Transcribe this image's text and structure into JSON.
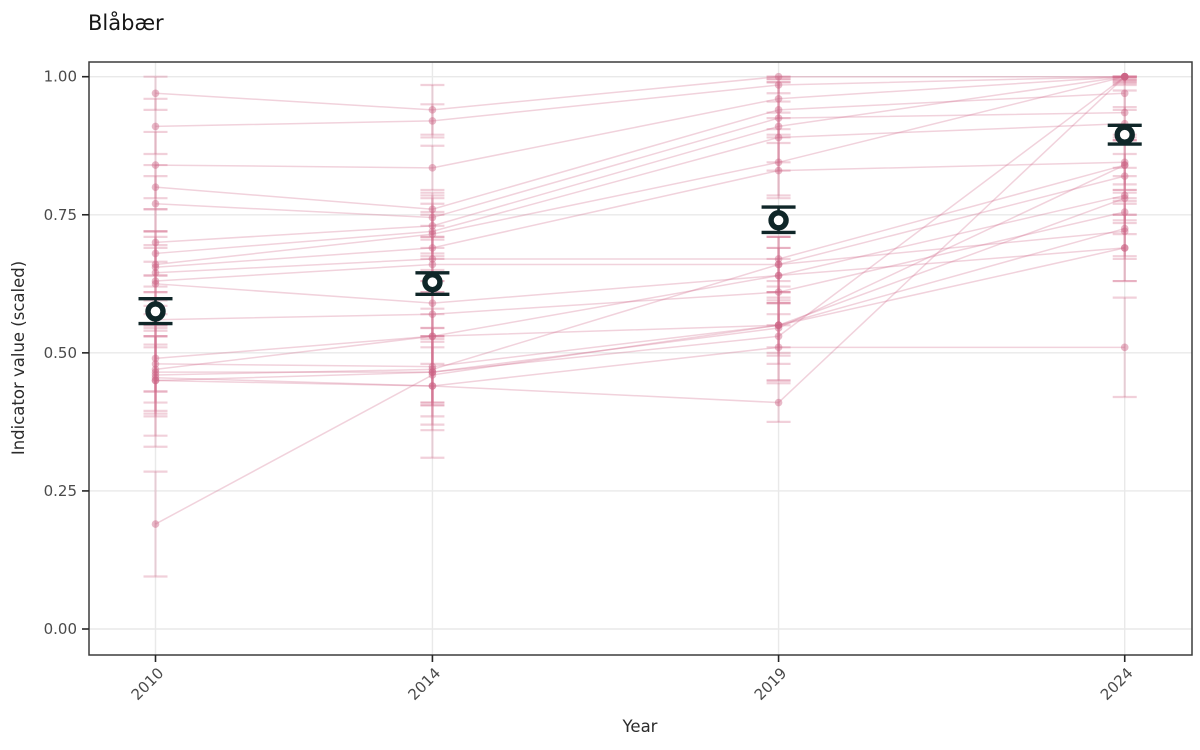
{
  "title": "Blåbær",
  "colors": {
    "site_pink": "#d06a8a",
    "mean_dark": "#0f2628",
    "grid": "#e9e9e9",
    "panel_border": "#3c3c3c",
    "tick_mark": "#262626",
    "tick_text": "#4a4a4a",
    "background": "#ffffff"
  },
  "chart_data": {
    "type": "line",
    "title": "Blåbær",
    "xlabel": "Year",
    "ylabel": "Indicator value (scaled)",
    "x": [
      2010,
      2014,
      2019,
      2024
    ],
    "x_tick_labels": [
      "2010",
      "2014",
      "2019",
      "2024"
    ],
    "y_ticks": [
      0.0,
      0.25,
      0.5,
      0.75,
      1.0
    ],
    "y_tick_labels": [
      "0.00",
      "0.25",
      "0.50",
      "0.75",
      "1.00"
    ],
    "ylim": [
      -0.047,
      1.027
    ],
    "grid": true,
    "legend": "none",
    "mean_series": {
      "name": "mean-with-95ci",
      "values": [
        0.575,
        0.628,
        0.74,
        0.895
      ],
      "ci_low": [
        0.553,
        0.606,
        0.718,
        0.878
      ],
      "ci_high": [
        0.598,
        0.645,
        0.764,
        0.912
      ]
    },
    "site_series": [
      {
        "values": [
          0.97,
          0.94,
          1.0,
          1.0
        ],
        "ci": [
          0.03,
          0.045,
          0.004,
          0.003
        ]
      },
      {
        "values": [
          0.91,
          0.92,
          0.985,
          1.0
        ],
        "ci": [
          0.05,
          0.03,
          0.015,
          0.006
        ]
      },
      {
        "values": [
          0.84,
          0.835,
          0.96,
          1.0
        ],
        "ci": [
          0.06,
          0.04,
          0.035,
          0.005
        ]
      },
      {
        "values": [
          0.8,
          0.76,
          0.94,
          0.97
        ],
        "ci": [
          0.04,
          0.03,
          0.05,
          0.03
        ]
      },
      {
        "values": [
          0.77,
          0.745,
          0.925,
          0.935
        ],
        "ci": [
          0.05,
          0.04,
          0.03,
          0.04
        ]
      },
      {
        "values": [
          0.7,
          0.73,
          0.91,
          1.0
        ],
        "ci": [
          0.06,
          0.05,
          0.08,
          0.008
        ]
      },
      {
        "values": [
          0.68,
          0.72,
          0.89,
          0.915
        ],
        "ci": [
          0.04,
          0.05,
          0.045,
          0.03
        ]
      },
      {
        "values": [
          0.66,
          0.715,
          0.845,
          1.0
        ],
        "ci": [
          0.05,
          0.04,
          0.06,
          0.015
        ]
      },
      {
        "values": [
          0.655,
          0.69,
          0.83,
          0.845
        ],
        "ci": [
          0.035,
          0.06,
          0.05,
          0.04
        ]
      },
      {
        "values": [
          0.645,
          0.67,
          0.67,
          0.84
        ],
        "ci": [
          0.05,
          0.04,
          0.04,
          0.05
        ]
      },
      {
        "values": [
          0.63,
          0.66,
          0.66,
          0.82
        ],
        "ci": [
          0.09,
          0.05,
          0.05,
          0.04
        ]
      },
      {
        "values": [
          0.625,
          0.59,
          0.64,
          0.785
        ],
        "ci": [
          0.04,
          0.06,
          0.05,
          0.05
        ]
      },
      {
        "values": [
          0.56,
          0.57,
          0.61,
          0.755
        ],
        "ci": [
          0.05,
          0.04,
          0.06,
          0.04
        ]
      },
      {
        "values": [
          0.49,
          0.53,
          0.55,
          0.725
        ],
        "ci": [
          0.06,
          0.05,
          0.07,
          0.05
        ]
      },
      {
        "values": [
          0.48,
          0.475,
          0.55,
          0.69
        ],
        "ci": [
          0.05,
          0.07,
          0.05,
          0.06
        ]
      },
      {
        "values": [
          0.465,
          0.465,
          0.53,
          1.0
        ],
        "ci": [
          0.08,
          0.06,
          0.08,
          0.01
        ]
      },
      {
        "values": [
          0.455,
          0.44,
          0.51,
          0.51
        ],
        "ci": [
          0.06,
          0.08,
          0.06,
          0.09
        ]
      },
      {
        "values": [
          0.19,
          0.46,
          0.55,
          0.78
        ],
        "ci": [
          0.095,
          0.05,
          0.04,
          0.04
        ]
      },
      {
        "values": [
          0.45,
          0.44,
          0.41,
          1.0
        ],
        "ci": [
          0.12,
          0.13,
          0.035,
          0.012
        ]
      },
      {
        "values": [
          0.46,
          0.47,
          0.66,
          0.72
        ],
        "ci": [
          0.07,
          0.06,
          0.05,
          0.05
        ]
      },
      {
        "values": [
          0.45,
          0.465,
          0.545,
          0.84
        ],
        "ci": [
          0.1,
          0.08,
          0.05,
          0.045
        ]
      },
      {
        "values": [
          0.47,
          0.53,
          0.64,
          0.69
        ],
        "ci": [
          0.06,
          0.16,
          0.05,
          0.06
        ]
      }
    ]
  }
}
